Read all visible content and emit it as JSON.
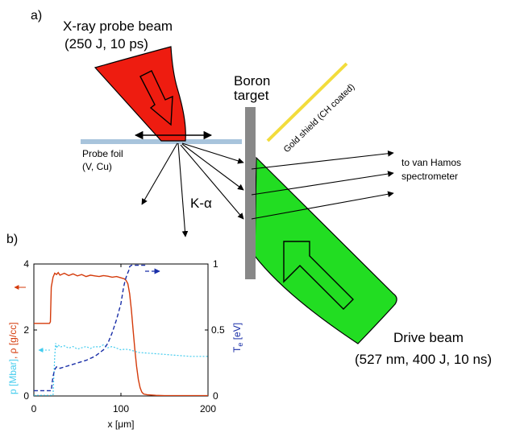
{
  "panel_a": {
    "panel_label": "a)",
    "probe_beam_title": "X-ray probe beam",
    "probe_beam_params": "(250 J, 10 ps)",
    "target_label_line1": "Boron",
    "target_label_line2": "target",
    "gold_shield_label": "Gold shield (CH coated)",
    "probe_foil_label_line1": "Probe foil",
    "probe_foil_label_line2": "(V, Cu)",
    "k_alpha_label": "K-α",
    "spectrometer_label_line1": "to van Hamos",
    "spectrometer_label_line2": "spectrometer",
    "drive_beam_title": "Drive beam",
    "drive_beam_params": "(527 nm, 400 J, 10 ns)",
    "colors": {
      "probe_beam": "#ee1c10",
      "drive_beam": "#22dd22",
      "target": "#888888",
      "foil": "#a8c4dc",
      "shield": "#f2dc3c"
    }
  },
  "panel_b": {
    "panel_label": "b)",
    "left_axis_label_density": "ρ [g/cc]",
    "left_axis_label_pressure": "p [Mbar]",
    "left_axis_label_sep": ", ",
    "right_axis_label": "T",
    "right_axis_subscript": "e",
    "right_axis_unit": " [eV]",
    "x_axis_label": "x [μm]",
    "x_ticks": [
      "0",
      "100",
      "200"
    ],
    "left_ticks": [
      "0",
      "2",
      "4"
    ],
    "right_ticks": [
      "0",
      "0.5",
      "1"
    ]
  },
  "chart_data": {
    "type": "line",
    "xlabel": "x [μm]",
    "ylabel": "p [Mbar], ρ [g/cc]",
    "y2label": "Te [eV]",
    "xlim": [
      0,
      200
    ],
    "ylim": [
      0,
      4
    ],
    "y2lim": [
      0,
      1
    ],
    "series": [
      {
        "axis": "left",
        "style": "solid",
        "color": "#d43a0a",
        "x": [
          0,
          18,
          19,
          20,
          22,
          24,
          26,
          28,
          30,
          35,
          40,
          45,
          50,
          55,
          60,
          65,
          70,
          75,
          80,
          85,
          90,
          95,
          100,
          104,
          106,
          108,
          110,
          112,
          114,
          116,
          118,
          120,
          122,
          124,
          126,
          130,
          140,
          150,
          170,
          200
        ],
        "y": [
          2.2,
          2.2,
          2.25,
          3.3,
          3.6,
          3.72,
          3.68,
          3.74,
          3.66,
          3.72,
          3.65,
          3.7,
          3.64,
          3.68,
          3.62,
          3.66,
          3.64,
          3.62,
          3.65,
          3.63,
          3.6,
          3.62,
          3.58,
          3.55,
          3.5,
          3.4,
          3.1,
          2.6,
          2.0,
          1.4,
          0.9,
          0.5,
          0.25,
          0.12,
          0.06,
          0.04,
          0.02,
          0.01,
          0.01,
          0.01
        ]
      },
      {
        "axis": "left",
        "style": "dotted",
        "color": "#44ccee",
        "x": [
          0,
          22,
          23,
          24,
          25,
          26,
          28,
          30,
          35,
          40,
          45,
          50,
          55,
          60,
          65,
          70,
          75,
          80,
          85,
          90,
          95,
          100,
          105,
          110,
          115,
          120,
          130,
          140,
          150,
          160,
          170,
          180,
          190,
          200
        ],
        "y": [
          0.02,
          0.02,
          0.6,
          1.2,
          1.6,
          1.45,
          1.55,
          1.48,
          1.52,
          1.45,
          1.5,
          1.42,
          1.46,
          1.5,
          1.44,
          1.5,
          1.48,
          1.55,
          1.46,
          1.5,
          1.45,
          1.4,
          1.42,
          1.4,
          1.36,
          1.32,
          1.3,
          1.28,
          1.26,
          1.24,
          1.22,
          1.2,
          1.2,
          1.2
        ]
      },
      {
        "axis": "right",
        "style": "dashed",
        "color": "#1a2fa8",
        "x": [
          0,
          15,
          18,
          20,
          21,
          22,
          24,
          26,
          30,
          40,
          50,
          60,
          70,
          80,
          85,
          90,
          95,
          100,
          103,
          105,
          107,
          109,
          110,
          112,
          130
        ],
        "y": [
          0.04,
          0.04,
          0.04,
          0.04,
          0.1,
          0.15,
          0.2,
          0.22,
          0.21,
          0.23,
          0.25,
          0.27,
          0.3,
          0.35,
          0.4,
          0.48,
          0.58,
          0.7,
          0.82,
          0.88,
          0.92,
          0.95,
          0.98,
          0.99,
          0.99
        ]
      }
    ]
  }
}
